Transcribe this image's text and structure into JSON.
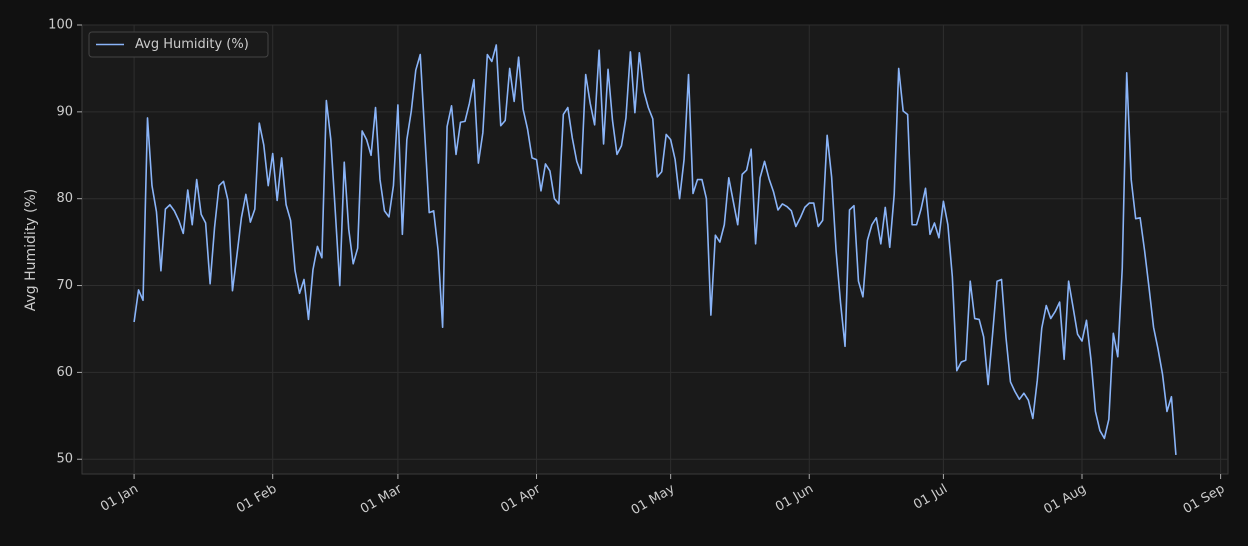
{
  "chart_data": {
    "type": "line",
    "ylabel": "Avg Humidity (%)",
    "x": [
      "01 Jan",
      "02 Jan",
      "03 Jan",
      "04 Jan",
      "05 Jan",
      "06 Jan",
      "07 Jan",
      "08 Jan",
      "09 Jan",
      "10 Jan",
      "11 Jan",
      "12 Jan",
      "13 Jan",
      "14 Jan",
      "15 Jan",
      "16 Jan",
      "17 Jan",
      "18 Jan",
      "19 Jan",
      "20 Jan",
      "21 Jan",
      "22 Jan",
      "23 Jan",
      "24 Jan",
      "25 Jan",
      "26 Jan",
      "27 Jan",
      "28 Jan",
      "29 Jan",
      "30 Jan",
      "31 Jan",
      "01 Feb",
      "02 Feb",
      "03 Feb",
      "04 Feb",
      "05 Feb",
      "06 Feb",
      "07 Feb",
      "08 Feb",
      "09 Feb",
      "10 Feb",
      "11 Feb",
      "12 Feb",
      "13 Feb",
      "14 Feb",
      "15 Feb",
      "16 Feb",
      "17 Feb",
      "18 Feb",
      "19 Feb",
      "20 Feb",
      "21 Feb",
      "22 Feb",
      "23 Feb",
      "24 Feb",
      "25 Feb",
      "26 Feb",
      "27 Feb",
      "28 Feb",
      "01 Mar",
      "02 Mar",
      "03 Mar",
      "04 Mar",
      "05 Mar",
      "06 Mar",
      "07 Mar",
      "08 Mar",
      "09 Mar",
      "10 Mar",
      "11 Mar",
      "12 Mar",
      "13 Mar",
      "14 Mar",
      "15 Mar",
      "16 Mar",
      "17 Mar",
      "18 Mar",
      "19 Mar",
      "20 Mar",
      "21 Mar",
      "22 Mar",
      "23 Mar",
      "24 Mar",
      "25 Mar",
      "26 Mar",
      "27 Mar",
      "28 Mar",
      "29 Mar",
      "30 Mar",
      "31 Mar",
      "01 Apr",
      "02 Apr",
      "03 Apr",
      "04 Apr",
      "05 Apr",
      "06 Apr",
      "07 Apr",
      "08 Apr",
      "09 Apr",
      "10 Apr",
      "11 Apr",
      "12 Apr",
      "13 Apr",
      "14 Apr",
      "15 Apr",
      "16 Apr",
      "17 Apr",
      "18 Apr",
      "19 Apr",
      "20 Apr",
      "21 Apr",
      "22 Apr",
      "23 Apr",
      "24 Apr",
      "25 Apr",
      "26 Apr",
      "27 Apr",
      "28 Apr",
      "29 Apr",
      "30 Apr",
      "01 May",
      "02 May",
      "03 May",
      "04 May",
      "05 May",
      "06 May",
      "07 May",
      "08 May",
      "09 May",
      "10 May",
      "11 May",
      "12 May",
      "13 May",
      "14 May",
      "15 May",
      "16 May",
      "17 May",
      "18 May",
      "19 May",
      "20 May",
      "21 May",
      "22 May",
      "23 May",
      "24 May",
      "25 May",
      "26 May",
      "27 May",
      "28 May",
      "29 May",
      "30 May",
      "31 May",
      "01 Jun",
      "02 Jun",
      "03 Jun",
      "04 Jun",
      "05 Jun",
      "06 Jun",
      "07 Jun",
      "08 Jun",
      "09 Jun",
      "10 Jun",
      "11 Jun",
      "12 Jun",
      "13 Jun",
      "14 Jun",
      "15 Jun",
      "16 Jun",
      "17 Jun",
      "18 Jun",
      "19 Jun",
      "20 Jun",
      "21 Jun",
      "22 Jun",
      "23 Jun",
      "24 Jun",
      "25 Jun",
      "26 Jun",
      "27 Jun",
      "28 Jun",
      "29 Jun",
      "30 Jun",
      "01 Jul",
      "02 Jul",
      "03 Jul",
      "04 Jul",
      "05 Jul",
      "06 Jul",
      "07 Jul",
      "08 Jul",
      "09 Jul",
      "10 Jul",
      "11 Jul",
      "12 Jul",
      "13 Jul",
      "14 Jul",
      "15 Jul",
      "16 Jul",
      "17 Jul",
      "18 Jul",
      "19 Jul",
      "20 Jul",
      "21 Jul",
      "22 Jul",
      "23 Jul",
      "24 Jul",
      "25 Jul",
      "26 Jul",
      "27 Jul",
      "28 Jul",
      "29 Jul",
      "30 Jul",
      "31 Jul",
      "01 Aug",
      "02 Aug",
      "03 Aug",
      "04 Aug",
      "05 Aug",
      "06 Aug",
      "07 Aug",
      "08 Aug",
      "09 Aug",
      "10 Aug",
      "11 Aug",
      "12 Aug",
      "13 Aug",
      "14 Aug",
      "15 Aug",
      "16 Aug",
      "17 Aug",
      "18 Aug",
      "19 Aug",
      "20 Aug",
      "21 Aug",
      "22 Aug"
    ],
    "series": [
      {
        "name": "Avg Humidity (%)",
        "color": "#8ab4f8",
        "values": [
          65.8,
          69.5,
          68.3,
          89.3,
          81.5,
          78.5,
          71.7,
          78.8,
          79.3,
          78.6,
          77.5,
          76.0,
          81.0,
          77.0,
          82.2,
          78.2,
          77.2,
          70.2,
          76.7,
          81.5,
          82.0,
          79.8,
          69.4,
          73.5,
          77.8,
          80.5,
          77.3,
          78.8,
          88.7,
          86.2,
          81.5,
          85.2,
          79.8,
          84.7,
          79.3,
          77.5,
          71.7,
          69.1,
          70.7,
          66.1,
          71.8,
          74.5,
          73.2,
          91.3,
          86.8,
          78.5,
          70.0,
          84.2,
          76.5,
          72.5,
          74.3,
          87.8,
          86.8,
          85.0,
          90.5,
          82.2,
          78.6,
          77.9,
          81.5,
          90.8,
          75.9,
          86.8,
          90.1,
          94.8,
          96.6,
          87.5,
          78.4,
          78.6,
          74.0,
          65.2,
          88.3,
          90.7,
          85.1,
          88.8,
          88.9,
          91.0,
          93.7,
          84.1,
          87.6,
          96.6,
          95.8,
          97.7,
          88.4,
          89.0,
          95.0,
          91.2,
          96.3,
          90.3,
          88.0,
          84.7,
          84.5,
          80.9,
          84.0,
          83.2,
          80.0,
          79.4,
          89.7,
          90.5,
          87.0,
          84.3,
          82.9,
          94.3,
          91.0,
          88.5,
          97.1,
          86.3,
          94.9,
          89.0,
          85.1,
          86.1,
          89.3,
          96.9,
          89.9,
          96.8,
          92.4,
          90.5,
          89.2,
          82.5,
          83.1,
          87.4,
          86.8,
          84.5,
          80.0,
          84.5,
          94.3,
          80.6,
          82.2,
          82.2,
          80.0,
          66.6,
          75.8,
          75.0,
          77.0,
          82.4,
          79.7,
          77.0,
          82.8,
          83.3,
          85.7,
          74.8,
          82.4,
          84.3,
          82.3,
          80.8,
          78.7,
          79.4,
          79.1,
          78.6,
          76.8,
          77.8,
          79.0,
          79.5,
          79.5,
          76.8,
          77.5,
          87.3,
          82.5,
          74.0,
          68.0,
          63.0,
          78.7,
          79.2,
          70.5,
          68.7,
          75.2,
          77.0,
          77.8,
          74.8,
          79.0,
          74.4,
          80.5,
          95.0,
          90.1,
          89.7,
          77.0,
          77.0,
          78.8,
          81.2,
          75.9,
          77.2,
          75.5,
          79.7,
          77.0,
          71.0,
          60.2,
          61.2,
          61.4,
          70.5,
          66.2,
          66.1,
          64.1,
          58.6,
          64.4,
          70.5,
          70.7,
          64.0,
          58.9,
          57.8,
          56.9,
          57.6,
          56.8,
          54.7,
          59.1,
          65.1,
          67.7,
          66.2,
          67.0,
          68.1,
          61.5,
          70.5,
          67.5,
          64.4,
          63.6,
          66.0,
          61.5,
          55.5,
          53.3,
          52.4,
          54.6,
          64.5,
          61.8,
          72.0,
          94.5,
          82.2,
          77.7,
          77.8,
          74.0,
          69.7,
          65.2,
          62.7,
          59.8,
          55.5,
          57.2,
          50.5
        ]
      }
    ],
    "xticks": [
      {
        "value": 0,
        "label": "01 Jan"
      },
      {
        "value": 31,
        "label": "01 Feb"
      },
      {
        "value": 59,
        "label": "01 Mar"
      },
      {
        "value": 90,
        "label": "01 Apr"
      },
      {
        "value": 120,
        "label": "01 May"
      },
      {
        "value": 151,
        "label": "01 Jun"
      },
      {
        "value": 181,
        "label": "01 Jul"
      },
      {
        "value": 212,
        "label": "01 Aug"
      },
      {
        "value": 243,
        "label": "01 Sep"
      }
    ],
    "ylim": [
      48.3,
      100.0
    ],
    "yticks": [
      50,
      60,
      70,
      80,
      90,
      100
    ],
    "grid": true,
    "legend": "upper left"
  }
}
